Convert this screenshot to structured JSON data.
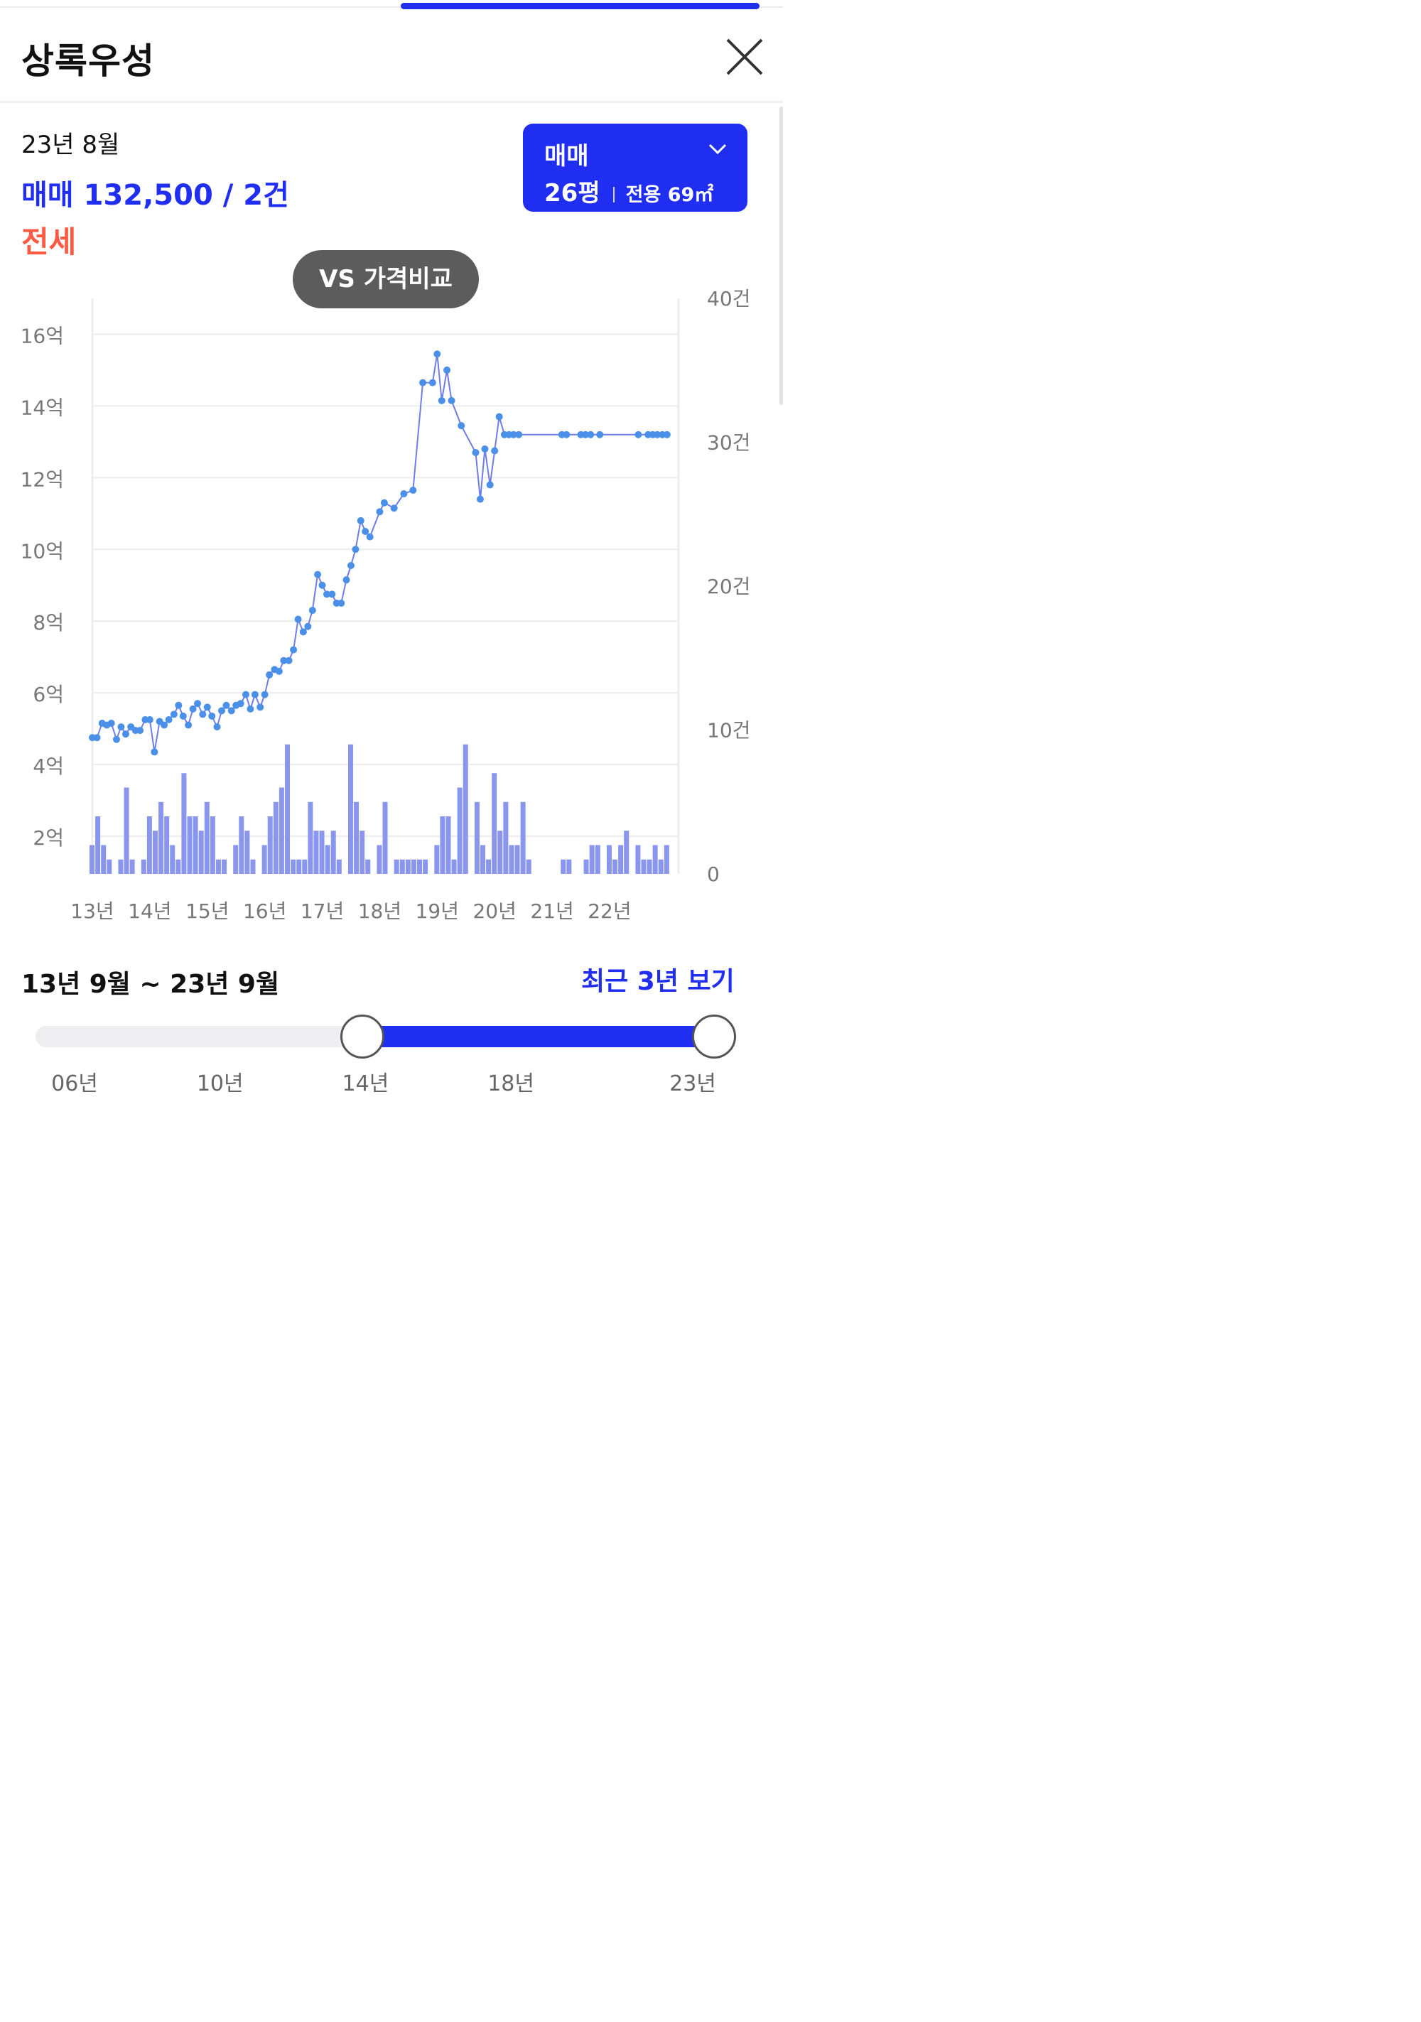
{
  "header": {
    "title": "상록우성"
  },
  "summary": {
    "date": "23년 8월",
    "trade_label": "매매",
    "trade_value": "132,500 / 2건",
    "jeonse_label": "전세"
  },
  "type_select": {
    "type": "매매",
    "pyeong": "26평",
    "area": "전용 69㎡"
  },
  "vs_button": "VS 가격비교",
  "chart_data": {
    "type": "line",
    "y_left_ticks": [
      "16억",
      "14억",
      "12억",
      "10억",
      "8억",
      "6억",
      "4억",
      "2억"
    ],
    "y_left_values": [
      16,
      14,
      12,
      10,
      8,
      6,
      4,
      2
    ],
    "y_left_range": [
      0.95,
      17
    ],
    "y_right_ticks": [
      "40건",
      "30건",
      "20건",
      "10건",
      "0"
    ],
    "y_right_values": [
      40,
      30,
      20,
      10,
      0
    ],
    "y_right_range": [
      0,
      40
    ],
    "x_ticks": [
      "13년",
      "14년",
      "15년",
      "16년",
      "17년",
      "18년",
      "19년",
      "20년",
      "21년",
      "22년"
    ],
    "x_tick_values": [
      2013,
      2014,
      2015,
      2016,
      2017,
      2018,
      2019,
      2020,
      2021,
      2022
    ],
    "x_range": [
      2013,
      2023.2
    ],
    "grid": true,
    "series": [
      {
        "kind": "line",
        "color": "#6f7de8",
        "point_color": "#4a90e8",
        "x": [
          2013.0,
          2013.08,
          2013.17,
          2013.25,
          2013.33,
          2013.42,
          2013.5,
          2013.58,
          2013.67,
          2013.75,
          2013.83,
          2013.92,
          2014.0,
          2014.08,
          2014.17,
          2014.25,
          2014.33,
          2014.42,
          2014.5,
          2014.58,
          2014.67,
          2014.75,
          2014.83,
          2014.92,
          2015.0,
          2015.08,
          2015.17,
          2015.25,
          2015.33,
          2015.42,
          2015.5,
          2015.58,
          2015.67,
          2015.75,
          2015.83,
          2015.92,
          2016.0,
          2016.08,
          2016.17,
          2016.25,
          2016.33,
          2016.42,
          2016.5,
          2016.58,
          2016.67,
          2016.75,
          2016.83,
          2016.92,
          2017.0,
          2017.08,
          2017.17,
          2017.25,
          2017.33,
          2017.42,
          2017.5,
          2017.58,
          2017.67,
          2017.75,
          2017.83,
          2018.0,
          2018.08,
          2018.25,
          2018.42,
          2018.58,
          2018.75,
          2018.92,
          2019.0,
          2019.08,
          2019.17,
          2019.25,
          2019.42,
          2019.67,
          2019.75,
          2019.83,
          2019.92,
          2020.0,
          2020.08,
          2020.17,
          2020.25,
          2020.33,
          2020.42,
          2021.17,
          2021.25,
          2021.5,
          2021.58,
          2021.67,
          2021.83,
          2022.5,
          2022.67,
          2022.75,
          2022.83,
          2022.92,
          2023.0
        ],
        "y": [
          4.75,
          4.75,
          5.15,
          5.1,
          5.15,
          4.7,
          5.05,
          4.85,
          5.05,
          4.95,
          4.95,
          5.25,
          5.25,
          4.35,
          5.2,
          5.1,
          5.25,
          5.4,
          5.65,
          5.35,
          5.1,
          5.55,
          5.7,
          5.4,
          5.6,
          5.35,
          5.05,
          5.5,
          5.65,
          5.5,
          5.65,
          5.7,
          5.95,
          5.55,
          5.95,
          5.6,
          5.95,
          6.5,
          6.65,
          6.6,
          6.9,
          6.9,
          7.2,
          8.05,
          7.7,
          7.85,
          8.3,
          9.3,
          9.0,
          8.75,
          8.75,
          8.5,
          8.5,
          9.15,
          9.55,
          10.0,
          10.8,
          10.5,
          10.35,
          11.05,
          11.3,
          11.15,
          11.55,
          11.65,
          14.65,
          14.65,
          15.45,
          14.15,
          15.0,
          14.15,
          13.45,
          12.7,
          11.4,
          12.8,
          11.8,
          12.75,
          13.7,
          13.2,
          13.2,
          13.2,
          13.2,
          13.2,
          13.2,
          13.2,
          13.2,
          13.2,
          13.2,
          13.2,
          13.2,
          13.2,
          13.2,
          13.2,
          13.2
        ]
      },
      {
        "kind": "bar",
        "color": "#8a95ee",
        "x": [
          2013.0,
          2013.1,
          2013.2,
          2013.3,
          2013.5,
          2013.6,
          2013.7,
          2013.9,
          2014.0,
          2014.1,
          2014.2,
          2014.3,
          2014.4,
          2014.5,
          2014.6,
          2014.7,
          2014.8,
          2014.9,
          2015.0,
          2015.1,
          2015.2,
          2015.3,
          2015.5,
          2015.6,
          2015.7,
          2015.8,
          2016.0,
          2016.1,
          2016.2,
          2016.3,
          2016.4,
          2016.5,
          2016.6,
          2016.7,
          2016.8,
          2016.9,
          2017.0,
          2017.1,
          2017.2,
          2017.3,
          2017.5,
          2017.6,
          2017.7,
          2017.8,
          2018.0,
          2018.1,
          2018.3,
          2018.4,
          2018.5,
          2018.6,
          2018.7,
          2018.8,
          2019.0,
          2019.1,
          2019.2,
          2019.3,
          2019.4,
          2019.5,
          2019.7,
          2019.8,
          2019.9,
          2020.0,
          2020.1,
          2020.2,
          2020.3,
          2020.4,
          2020.5,
          2020.6,
          2021.2,
          2021.3,
          2021.6,
          2021.7,
          2021.8,
          2022.0,
          2022.1,
          2022.2,
          2022.3,
          2022.5,
          2022.6,
          2022.7,
          2022.8,
          2022.9,
          2023.0
        ],
        "y": [
          2,
          4,
          2,
          1,
          1,
          6,
          1,
          1,
          4,
          3,
          5,
          4,
          2,
          1,
          7,
          4,
          4,
          3,
          5,
          4,
          1,
          1,
          2,
          4,
          3,
          1,
          2,
          4,
          5,
          6,
          9,
          1,
          1,
          1,
          5,
          3,
          3,
          2,
          3,
          1,
          9,
          5,
          3,
          1,
          2,
          5,
          1,
          1,
          1,
          1,
          1,
          1,
          2,
          4,
          4,
          1,
          6,
          9,
          5,
          2,
          1,
          7,
          3,
          5,
          2,
          2,
          5,
          1,
          1,
          1,
          1,
          2,
          2,
          2,
          1,
          2,
          3,
          2,
          1,
          1,
          2,
          1,
          2
        ]
      }
    ]
  },
  "range": {
    "label": "13년 9월  ~ 23년 9월",
    "recent_link": "최근 3년 보기",
    "ticks": [
      "06년",
      "10년",
      "14년",
      "18년",
      "23년"
    ],
    "tick_values": [
      2006,
      2010,
      2014,
      2018,
      2023
    ],
    "slider_min": 2006,
    "slider_max": 2023,
    "selected_start": 2013.75,
    "selected_end": 2023.75
  },
  "colors": {
    "accent": "#1f2ef0",
    "jeonse": "#ff5a44",
    "line": "#6f7de8",
    "point": "#4a90e8",
    "bar": "#8a95ee"
  }
}
